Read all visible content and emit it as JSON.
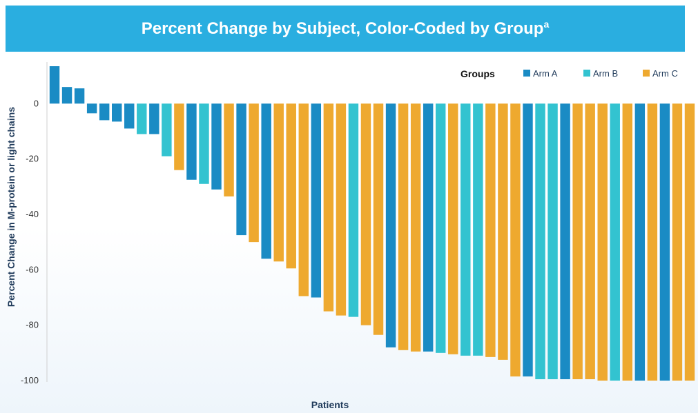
{
  "title": {
    "main": "Percent Change by Subject, Color-Coded by Group",
    "superscript": "a"
  },
  "colors": {
    "banner": "#2aaee0",
    "Arm A": "#1a8bc4",
    "Arm B": "#33c3d0",
    "Arm C": "#eea92f"
  },
  "chart_data": {
    "type": "bar",
    "xlabel": "Patients",
    "ylabel": "Percent Change in M-protein or light chains",
    "ylim": [
      -100,
      15
    ],
    "yticks": [
      0,
      -20,
      -40,
      -60,
      -80,
      -100
    ],
    "ytick_labels": [
      "0",
      "-20",
      "-40",
      "-60",
      "-80",
      "-100"
    ],
    "grid": false,
    "legend": {
      "title": "Groups",
      "position": "top-right",
      "entries": [
        "Arm A",
        "Arm B",
        "Arm C"
      ]
    },
    "bars": [
      {
        "group": "Arm A",
        "value": 13.5
      },
      {
        "group": "Arm A",
        "value": 6
      },
      {
        "group": "Arm A",
        "value": 5.5
      },
      {
        "group": "Arm A",
        "value": -3.5
      },
      {
        "group": "Arm A",
        "value": -6
      },
      {
        "group": "Arm A",
        "value": -6.5
      },
      {
        "group": "Arm A",
        "value": -9
      },
      {
        "group": "Arm B",
        "value": -11
      },
      {
        "group": "Arm A",
        "value": -11
      },
      {
        "group": "Arm B",
        "value": -19
      },
      {
        "group": "Arm C",
        "value": -24
      },
      {
        "group": "Arm A",
        "value": -27.5
      },
      {
        "group": "Arm B",
        "value": -29
      },
      {
        "group": "Arm A",
        "value": -31
      },
      {
        "group": "Arm C",
        "value": -33.5
      },
      {
        "group": "Arm A",
        "value": -47.5
      },
      {
        "group": "Arm C",
        "value": -50
      },
      {
        "group": "Arm A",
        "value": -56
      },
      {
        "group": "Arm C",
        "value": -57
      },
      {
        "group": "Arm C",
        "value": -59.5
      },
      {
        "group": "Arm C",
        "value": -69.5
      },
      {
        "group": "Arm A",
        "value": -70
      },
      {
        "group": "Arm C",
        "value": -75
      },
      {
        "group": "Arm C",
        "value": -76.5
      },
      {
        "group": "Arm B",
        "value": -77
      },
      {
        "group": "Arm C",
        "value": -80
      },
      {
        "group": "Arm C",
        "value": -83.5
      },
      {
        "group": "Arm A",
        "value": -88
      },
      {
        "group": "Arm C",
        "value": -89
      },
      {
        "group": "Arm C",
        "value": -89.5
      },
      {
        "group": "Arm A",
        "value": -89.5
      },
      {
        "group": "Arm B",
        "value": -90
      },
      {
        "group": "Arm C",
        "value": -90.5
      },
      {
        "group": "Arm B",
        "value": -91
      },
      {
        "group": "Arm B",
        "value": -91
      },
      {
        "group": "Arm C",
        "value": -91.5
      },
      {
        "group": "Arm C",
        "value": -92.5
      },
      {
        "group": "Arm C",
        "value": -98.5
      },
      {
        "group": "Arm A",
        "value": -98.5
      },
      {
        "group": "Arm B",
        "value": -99.5
      },
      {
        "group": "Arm B",
        "value": -99.5
      },
      {
        "group": "Arm A",
        "value": -99.5
      },
      {
        "group": "Arm C",
        "value": -99.5
      },
      {
        "group": "Arm C",
        "value": -99.5
      },
      {
        "group": "Arm C",
        "value": -100
      },
      {
        "group": "Arm B",
        "value": -100
      },
      {
        "group": "Arm C",
        "value": -100
      },
      {
        "group": "Arm A",
        "value": -100
      },
      {
        "group": "Arm C",
        "value": -100
      },
      {
        "group": "Arm A",
        "value": -100
      },
      {
        "group": "Arm C",
        "value": -100
      },
      {
        "group": "Arm C",
        "value": -100
      }
    ]
  }
}
